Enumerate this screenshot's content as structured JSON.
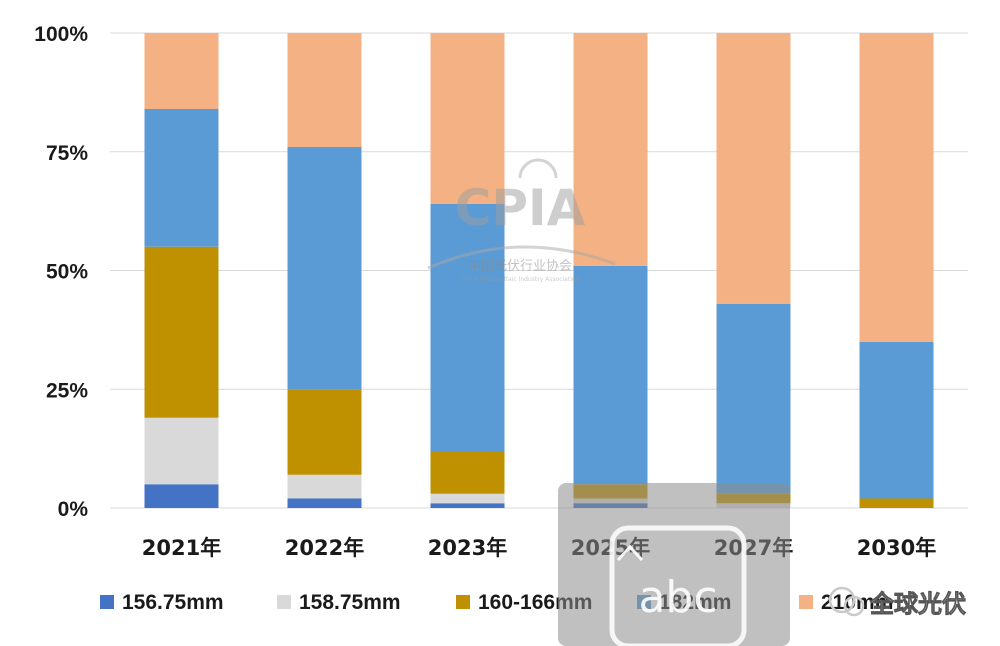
{
  "chart_data": {
    "type": "bar",
    "stacked": true,
    "categories": [
      "2021年",
      "2022年",
      "2023年",
      "2025年",
      "2027年",
      "2030年"
    ],
    "series": [
      {
        "name": "156.75mm",
        "color": "#4472C4",
        "values": [
          5,
          2,
          1,
          1,
          0,
          0
        ]
      },
      {
        "name": "158.75mm",
        "color": "#D9D9D9",
        "values": [
          14,
          5,
          2,
          1,
          1,
          0
        ]
      },
      {
        "name": "160-166mm",
        "color": "#BF9000",
        "values": [
          36,
          18,
          9,
          3,
          2,
          2
        ]
      },
      {
        "name": "182mm",
        "color": "#5B9BD5",
        "values": [
          29,
          51,
          52,
          46,
          40,
          33
        ]
      },
      {
        "name": "210mm",
        "color": "#F4B183",
        "values": [
          16,
          24,
          36,
          49,
          57,
          65
        ]
      }
    ],
    "yticks": [
      "0%",
      "25%",
      "50%",
      "75%",
      "100%"
    ],
    "ylim": [
      0,
      100
    ],
    "grid": true,
    "legend": "bottom"
  },
  "watermark": {
    "logo": "CPIA",
    "org_cn": "中国光伏行业协会",
    "org_en": "China Photovoltaic Industry Association",
    "account": "全球光伏",
    "overlay_glyphs": "abc"
  }
}
